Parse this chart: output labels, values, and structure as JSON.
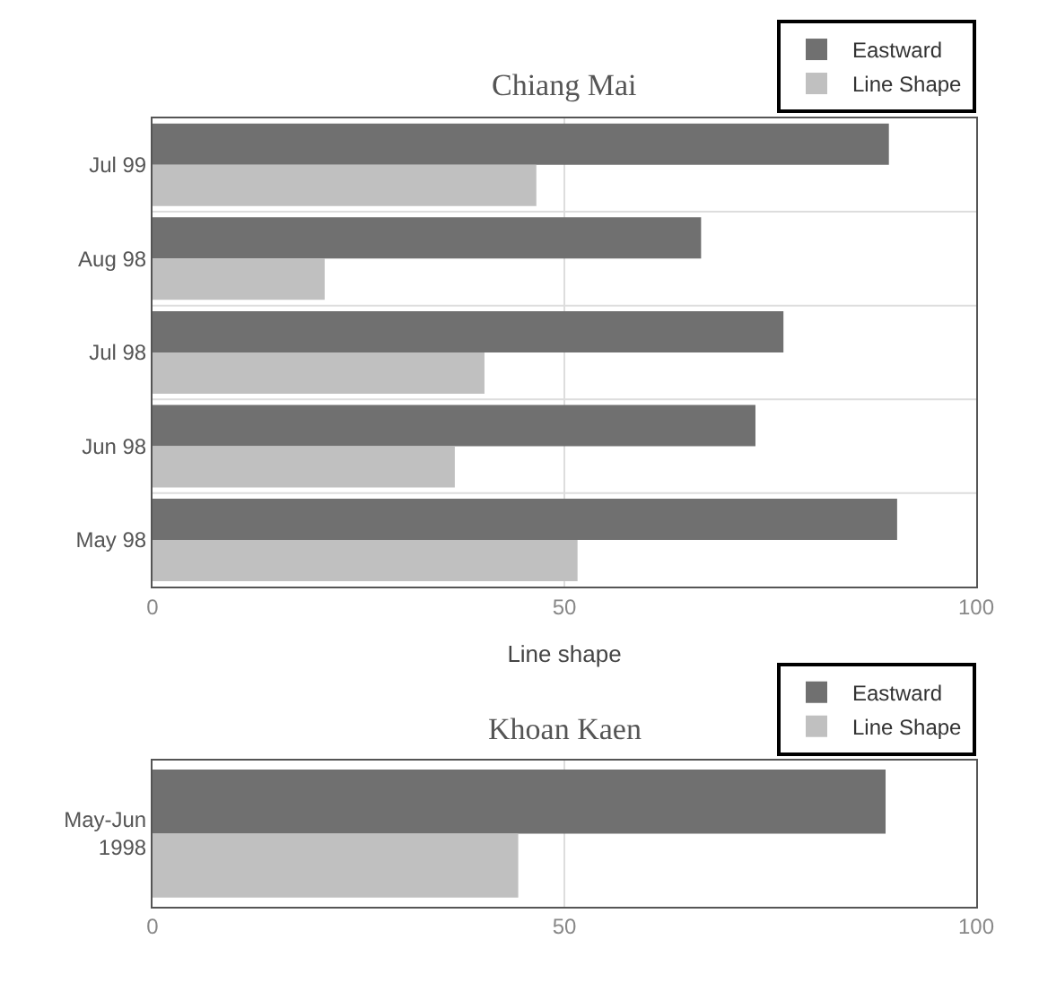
{
  "chart_data": [
    {
      "type": "bar",
      "orientation": "horizontal",
      "title": "Chiang Mai",
      "xlabel": "Line shape",
      "categories": [
        "Jul 99",
        "Aug 98",
        "Jul 98",
        "Jun 98",
        "May 98"
      ],
      "series": [
        {
          "name": "Eastward",
          "color": "#707070",
          "values": [
            89.4,
            66.6,
            76.6,
            73.2,
            90.4
          ]
        },
        {
          "name": "Line Shape",
          "color": "#c0c0c0",
          "values": [
            46.6,
            20.9,
            40.3,
            36.7,
            51.6
          ]
        }
      ],
      "xlim": [
        0,
        100
      ],
      "xticks": [
        0,
        50,
        100
      ],
      "grid": "x",
      "legend": "top right"
    },
    {
      "type": "bar",
      "orientation": "horizontal",
      "title": "Khoan Kaen",
      "categories": [
        "May-Jun\n1998"
      ],
      "series": [
        {
          "name": "Eastward",
          "color": "#707070",
          "values": [
            89.0
          ]
        },
        {
          "name": "Line Shape",
          "color": "#c0c0c0",
          "values": [
            44.4
          ]
        }
      ],
      "xlim": [
        0,
        100
      ],
      "xticks": [
        0,
        50,
        100
      ],
      "grid": "x",
      "legend": "top right"
    }
  ]
}
